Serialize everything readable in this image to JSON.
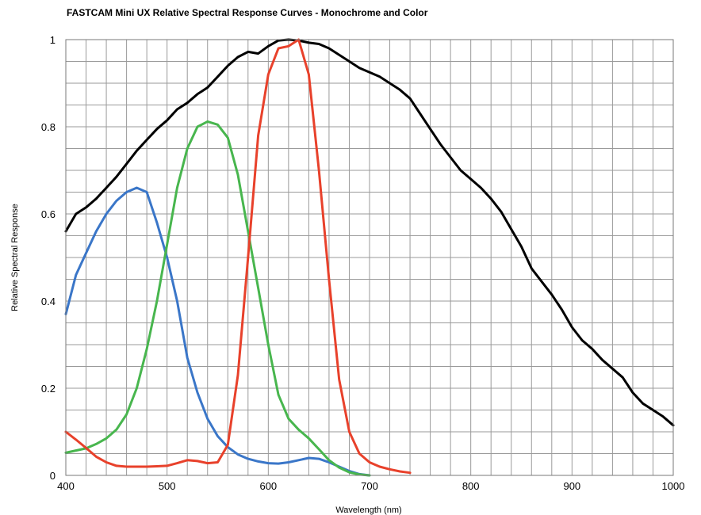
{
  "chart_data": {
    "type": "line",
    "title": "FASTCAM Mini UX Relative Spectral Response Curves - Monochrome and Color",
    "xlabel": "Wavelength (nm)",
    "ylabel": "Relative Spectral Response",
    "xlim": [
      400,
      1000
    ],
    "ylim": [
      0,
      1
    ],
    "xticks": [
      400,
      500,
      600,
      700,
      800,
      900,
      1000
    ],
    "yticks": [
      0,
      0.2,
      0.4,
      0.6,
      0.8,
      1
    ],
    "ytick_labels": [
      "0",
      "0.2",
      "0.4",
      "0.6",
      "0.8",
      "1"
    ],
    "grid": true,
    "minor_x_step": 20,
    "minor_y_step": 0.05,
    "grid_color": "#9a9a9a",
    "series": [
      {
        "color": "#000000",
        "x": [
          400,
          410,
          420,
          430,
          440,
          450,
          460,
          470,
          480,
          490,
          500,
          510,
          520,
          530,
          540,
          550,
          560,
          570,
          580,
          590,
          600,
          610,
          620,
          630,
          640,
          650,
          660,
          670,
          680,
          690,
          700,
          710,
          720,
          730,
          740,
          750,
          760,
          770,
          780,
          790,
          800,
          810,
          820,
          830,
          840,
          850,
          860,
          870,
          880,
          890,
          900,
          910,
          920,
          930,
          940,
          950,
          960,
          970,
          980,
          990,
          1000
        ],
        "y": [
          0.56,
          0.6,
          0.615,
          0.635,
          0.66,
          0.685,
          0.715,
          0.745,
          0.77,
          0.795,
          0.815,
          0.84,
          0.855,
          0.875,
          0.89,
          0.915,
          0.94,
          0.96,
          0.972,
          0.968,
          0.985,
          0.998,
          1.0,
          0.998,
          0.993,
          0.99,
          0.98,
          0.965,
          0.95,
          0.935,
          0.925,
          0.915,
          0.9,
          0.885,
          0.865,
          0.83,
          0.795,
          0.76,
          0.73,
          0.7,
          0.68,
          0.66,
          0.635,
          0.605,
          0.565,
          0.525,
          0.475,
          0.445,
          0.415,
          0.38,
          0.34,
          0.31,
          0.29,
          0.265,
          0.245,
          0.225,
          0.19,
          0.165,
          0.15,
          0.135,
          0.115
        ]
      },
      {
        "color": "#3a76c8",
        "x": [
          400,
          410,
          420,
          430,
          440,
          450,
          460,
          470,
          480,
          490,
          500,
          510,
          520,
          530,
          540,
          550,
          560,
          570,
          580,
          590,
          600,
          610,
          620,
          630,
          640,
          650,
          660,
          670,
          680,
          690,
          700
        ],
        "y": [
          0.37,
          0.46,
          0.51,
          0.56,
          0.6,
          0.63,
          0.65,
          0.66,
          0.65,
          0.58,
          0.5,
          0.4,
          0.27,
          0.19,
          0.13,
          0.09,
          0.065,
          0.048,
          0.038,
          0.032,
          0.028,
          0.027,
          0.03,
          0.035,
          0.04,
          0.038,
          0.03,
          0.02,
          0.01,
          0.003,
          0.0
        ]
      },
      {
        "color": "#48b64e",
        "x": [
          400,
          410,
          420,
          430,
          440,
          450,
          460,
          470,
          480,
          490,
          500,
          510,
          520,
          530,
          540,
          550,
          560,
          570,
          580,
          590,
          600,
          610,
          620,
          630,
          640,
          650,
          660,
          670,
          680,
          690,
          700
        ],
        "y": [
          0.052,
          0.057,
          0.062,
          0.072,
          0.085,
          0.105,
          0.14,
          0.2,
          0.29,
          0.4,
          0.53,
          0.66,
          0.75,
          0.8,
          0.812,
          0.805,
          0.775,
          0.69,
          0.56,
          0.43,
          0.3,
          0.185,
          0.13,
          0.105,
          0.085,
          0.06,
          0.035,
          0.018,
          0.007,
          0.002,
          0.0
        ]
      },
      {
        "color": "#e8412b",
        "x": [
          400,
          410,
          420,
          430,
          440,
          450,
          460,
          470,
          480,
          490,
          500,
          510,
          520,
          530,
          540,
          550,
          560,
          570,
          580,
          590,
          600,
          610,
          620,
          630,
          640,
          650,
          660,
          670,
          680,
          690,
          700,
          710,
          720,
          730,
          740
        ],
        "y": [
          0.1,
          0.082,
          0.063,
          0.043,
          0.03,
          0.022,
          0.02,
          0.02,
          0.02,
          0.021,
          0.022,
          0.028,
          0.035,
          0.033,
          0.028,
          0.03,
          0.07,
          0.23,
          0.5,
          0.78,
          0.92,
          0.98,
          0.985,
          1.0,
          0.92,
          0.7,
          0.45,
          0.22,
          0.1,
          0.05,
          0.03,
          0.02,
          0.014,
          0.009,
          0.006
        ]
      }
    ]
  }
}
